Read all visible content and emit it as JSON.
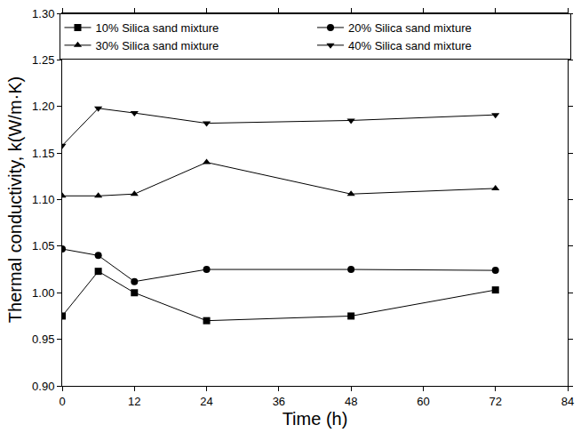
{
  "chart_data": {
    "type": "line",
    "x_label": "Time (h)",
    "y_label": "Thermal conductivity, k(W/m·K)",
    "x": [
      0,
      6,
      12,
      24,
      48,
      72
    ],
    "series": [
      {
        "name": "10% Silica sand mixture",
        "color": "#000000",
        "marker": "square",
        "values": [
          0.975,
          1.023,
          1.0,
          0.97,
          0.975,
          1.003
        ]
      },
      {
        "name": "20% Silica sand mixture",
        "color": "#000000",
        "marker": "circle",
        "values": [
          1.047,
          1.04,
          1.012,
          1.025,
          1.025,
          1.024
        ]
      },
      {
        "name": "30% Silica sand mixture",
        "color": "#000000",
        "marker": "triangle-up",
        "values": [
          1.104,
          1.104,
          1.106,
          1.14,
          1.106,
          1.112
        ]
      },
      {
        "name": "40% Silica sand mixture",
        "color": "#000000",
        "marker": "triangle-down",
        "values": [
          1.158,
          1.198,
          1.193,
          1.182,
          1.185,
          1.191
        ]
      }
    ],
    "xlim": [
      0,
      84
    ],
    "xticks": [
      0,
      12,
      24,
      36,
      48,
      60,
      72,
      84
    ],
    "ylim": [
      0.9,
      1.3
    ],
    "yticks": [
      {
        "value": 0.9,
        "label": "0.90"
      },
      0.95,
      {
        "value": 1.0,
        "label": "1.00"
      },
      1.05,
      {
        "value": 1.1,
        "label": "1.10"
      },
      1.15,
      {
        "value": 1.2,
        "label": "1.20"
      },
      1.25,
      {
        "value": 1.3,
        "label": "1.30"
      }
    ],
    "grid": false,
    "legend": "top"
  }
}
